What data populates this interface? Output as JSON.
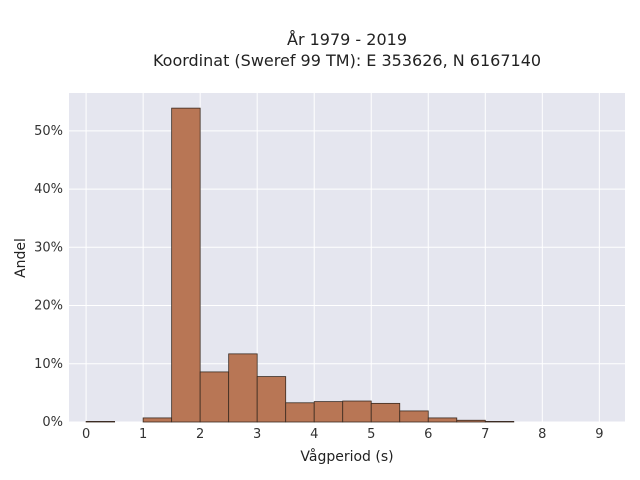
{
  "chart_data": {
    "type": "bar",
    "title": "År 1979 - 2019",
    "subtitle": "Koordinat (Sweref 99 TM): E 353626, N 6167140",
    "xlabel": "Vågperiod (s)",
    "ylabel": "Andel",
    "xlim": [
      -0.3,
      9.45
    ],
    "ylim": [
      0,
      56.5
    ],
    "x_ticks": [
      0,
      1,
      2,
      3,
      4,
      5,
      6,
      7,
      8,
      9
    ],
    "y_ticks": [
      0,
      10,
      20,
      30,
      40,
      50
    ],
    "y_tick_labels": [
      "0%",
      "10%",
      "20%",
      "30%",
      "40%",
      "50%"
    ],
    "bin_width": 0.5,
    "bins": [
      {
        "start": 0.0,
        "value": 0.1
      },
      {
        "start": 0.5,
        "value": 0.0
      },
      {
        "start": 1.0,
        "value": 0.7
      },
      {
        "start": 1.5,
        "value": 53.9
      },
      {
        "start": 2.0,
        "value": 8.6
      },
      {
        "start": 2.5,
        "value": 11.7
      },
      {
        "start": 3.0,
        "value": 7.8
      },
      {
        "start": 3.5,
        "value": 3.3
      },
      {
        "start": 4.0,
        "value": 3.5
      },
      {
        "start": 4.5,
        "value": 3.6
      },
      {
        "start": 5.0,
        "value": 3.2
      },
      {
        "start": 5.5,
        "value": 1.9
      },
      {
        "start": 6.0,
        "value": 0.7
      },
      {
        "start": 6.5,
        "value": 0.3
      },
      {
        "start": 7.0,
        "value": 0.1
      }
    ],
    "grid": true,
    "colors": {
      "bar_fill": "#b87655",
      "bar_edge": "#3a2a20",
      "plot_bg": "#e5e6ef",
      "grid": "#ffffff"
    }
  }
}
